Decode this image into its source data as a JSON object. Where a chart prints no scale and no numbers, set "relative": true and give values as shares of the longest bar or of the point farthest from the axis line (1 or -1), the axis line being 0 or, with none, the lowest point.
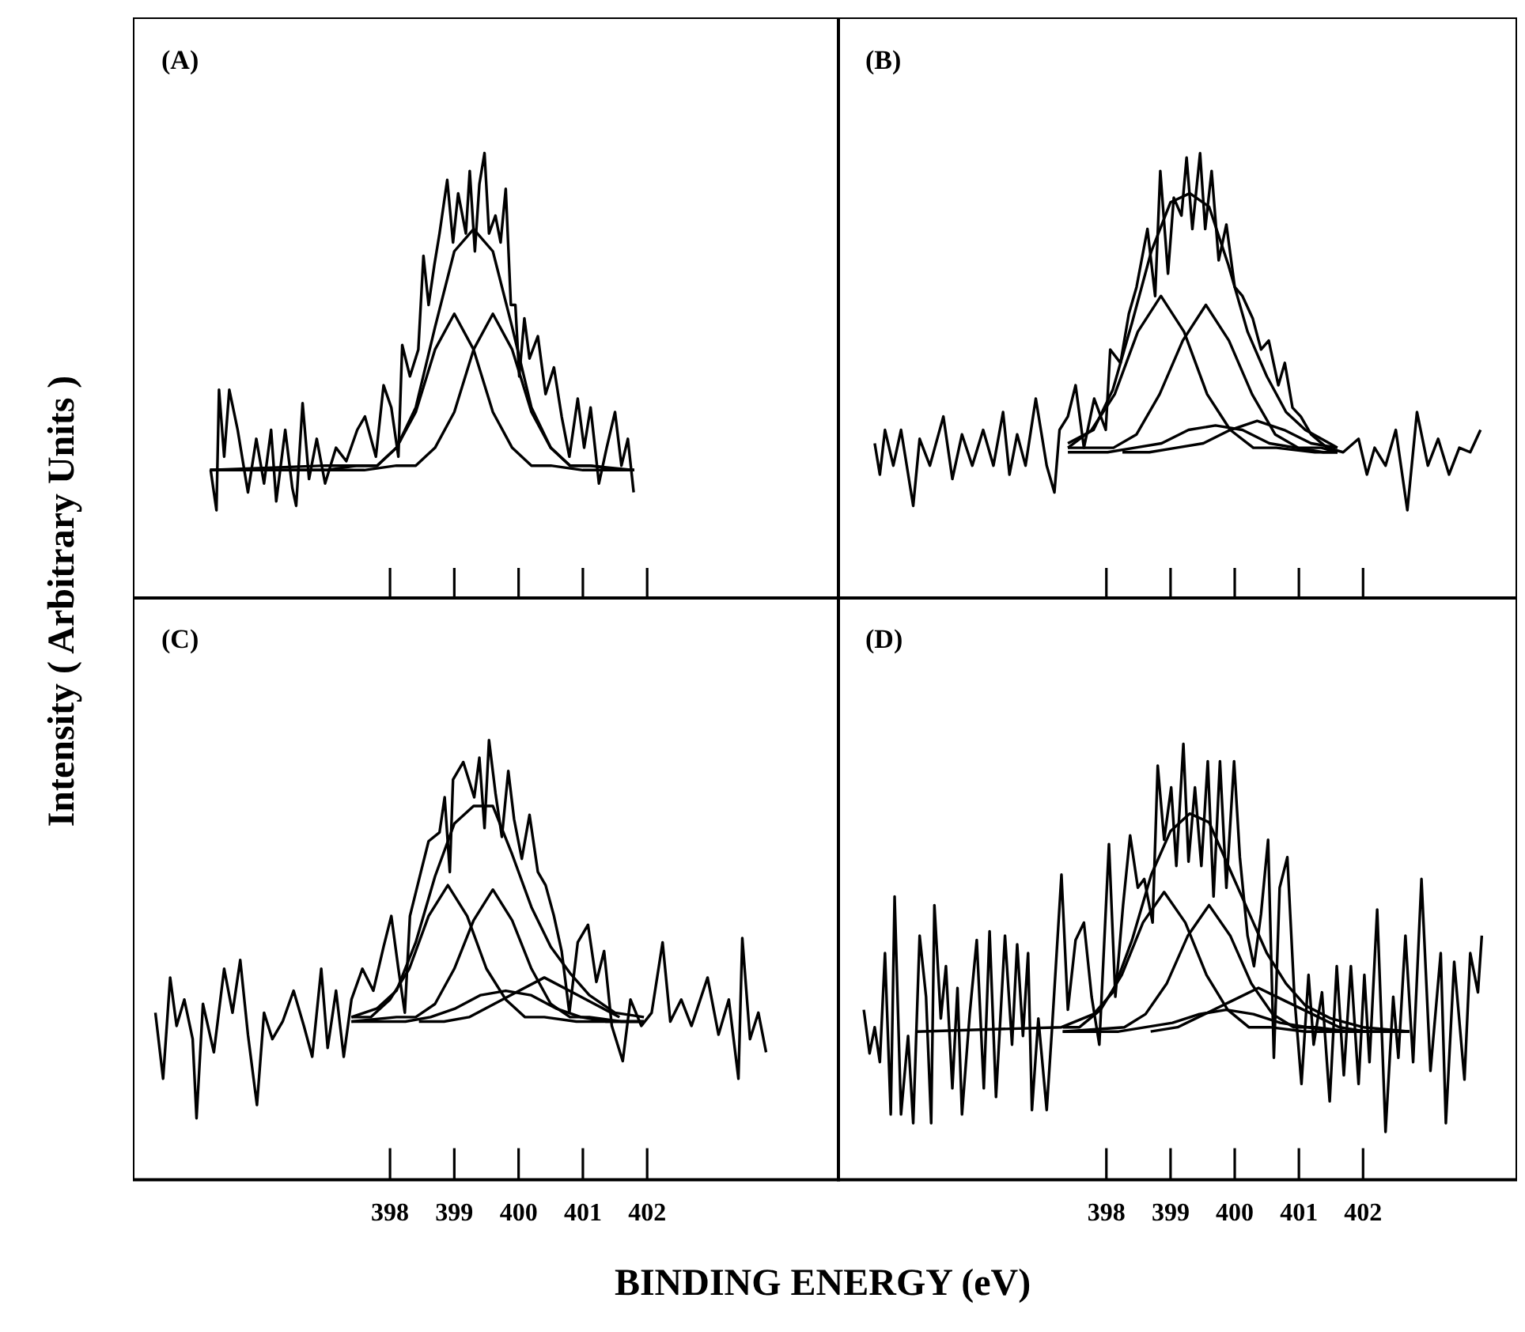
{
  "chart_data": [
    {
      "type": "line",
      "title": "(A)",
      "ylabel": "Intensity ( Arbitrary Units )",
      "relative": true,
      "xlim": [
        394,
        405
      ],
      "xticks": [
        398,
        399,
        400,
        401,
        402
      ],
      "tick_labels": false,
      "series": [
        {
          "color": "#000000",
          "x": [
            395.21,
            395.3,
            395.34,
            395.42,
            395.5,
            395.63,
            395.79,
            395.92,
            396.04,
            396.15,
            396.23,
            396.37,
            396.48,
            396.54,
            396.64,
            396.74,
            396.86,
            396.99,
            397.16,
            397.32,
            397.49,
            397.61,
            397.78,
            397.9,
            398.02,
            398.13,
            398.19,
            398.31,
            398.44,
            398.52,
            398.6,
            398.69,
            398.77,
            398.89,
            398.98,
            399.06,
            399.18,
            399.24,
            399.32,
            399.39,
            399.47,
            399.54,
            399.64,
            399.72,
            399.8,
            399.88,
            399.95,
            400.01,
            400.09,
            400.17,
            400.3,
            400.42,
            400.55,
            400.67,
            400.79,
            400.92,
            401.02,
            401.12,
            401.25,
            401.37,
            401.5,
            401.6,
            401.7,
            401.79
          ],
          "values": [
            0.29,
            0.2,
            0.47,
            0.32,
            0.47,
            0.38,
            0.24,
            0.36,
            0.26,
            0.38,
            0.22,
            0.38,
            0.25,
            0.21,
            0.44,
            0.27,
            0.36,
            0.26,
            0.34,
            0.31,
            0.38,
            0.41,
            0.32,
            0.48,
            0.43,
            0.32,
            0.57,
            0.5,
            0.56,
            0.77,
            0.66,
            0.75,
            0.82,
            0.94,
            0.8,
            0.91,
            0.82,
            0.96,
            0.78,
            0.93,
            1.0,
            0.82,
            0.86,
            0.8,
            0.92,
            0.66,
            0.66,
            0.5,
            0.63,
            0.54,
            0.59,
            0.46,
            0.52,
            0.41,
            0.32,
            0.45,
            0.34,
            0.43,
            0.26,
            0.34,
            0.42,
            0.3,
            0.36,
            0.24
          ]
        },
        {
          "color": "#000000",
          "x": [
            395.2,
            397.0,
            397.5,
            397.8,
            398.1,
            398.4,
            398.7,
            399.0,
            399.3,
            399.6,
            399.9,
            400.2,
            400.5,
            400.8,
            401.1,
            401.8
          ],
          "values": [
            0.29,
            0.3,
            0.3,
            0.3,
            0.34,
            0.43,
            0.61,
            0.78,
            0.83,
            0.78,
            0.61,
            0.43,
            0.34,
            0.3,
            0.3,
            0.29
          ]
        },
        {
          "color": "#000000",
          "x": [
            395.2,
            397.0,
            397.5,
            397.8,
            398.1,
            398.4,
            398.7,
            399.0,
            399.3,
            399.6,
            399.9,
            400.2,
            400.5,
            401.0,
            401.8
          ],
          "values": [
            0.29,
            0.29,
            0.3,
            0.3,
            0.34,
            0.42,
            0.56,
            0.64,
            0.56,
            0.42,
            0.34,
            0.3,
            0.3,
            0.29,
            0.29
          ]
        },
        {
          "color": "#000000",
          "x": [
            395.2,
            397.6,
            398.1,
            398.4,
            398.7,
            399.0,
            399.3,
            399.6,
            399.9,
            400.2,
            400.5,
            400.8,
            401.1,
            401.6,
            401.8
          ],
          "values": [
            0.29,
            0.29,
            0.3,
            0.3,
            0.34,
            0.42,
            0.56,
            0.64,
            0.56,
            0.42,
            0.34,
            0.3,
            0.3,
            0.29,
            0.29
          ]
        }
      ]
    },
    {
      "type": "line",
      "title": "(B)",
      "relative": true,
      "xlim": [
        393.8,
        404.4
      ],
      "xticks": [
        398,
        399,
        400,
        401,
        402
      ],
      "tick_labels": false,
      "series": [
        {
          "color": "#000000",
          "x": [
            394.39,
            394.47,
            394.55,
            394.68,
            394.8,
            394.99,
            395.09,
            395.25,
            395.46,
            395.6,
            395.75,
            395.91,
            396.08,
            396.24,
            396.39,
            396.49,
            396.61,
            396.74,
            396.9,
            397.07,
            397.19,
            397.27,
            397.4,
            397.52,
            397.65,
            397.81,
            397.99,
            398.06,
            398.22,
            398.35,
            398.47,
            398.64,
            398.76,
            398.84,
            398.96,
            399.05,
            399.17,
            399.25,
            399.34,
            399.46,
            399.54,
            399.64,
            399.75,
            399.87,
            400.0,
            400.12,
            400.28,
            400.41,
            400.53,
            400.68,
            400.78,
            400.9,
            401.03,
            401.19,
            401.44,
            401.69,
            401.93,
            402.06,
            402.18,
            402.35,
            402.51,
            402.69,
            402.84,
            403.01,
            403.17,
            403.34,
            403.5,
            403.67,
            403.83
          ],
          "values": [
            0.35,
            0.28,
            0.38,
            0.3,
            0.38,
            0.21,
            0.36,
            0.3,
            0.41,
            0.27,
            0.37,
            0.3,
            0.38,
            0.3,
            0.42,
            0.28,
            0.37,
            0.3,
            0.45,
            0.3,
            0.24,
            0.38,
            0.41,
            0.48,
            0.34,
            0.45,
            0.38,
            0.56,
            0.53,
            0.64,
            0.7,
            0.83,
            0.68,
            0.96,
            0.73,
            0.9,
            0.86,
            0.99,
            0.83,
            1.0,
            0.83,
            0.96,
            0.76,
            0.84,
            0.7,
            0.68,
            0.63,
            0.56,
            0.58,
            0.48,
            0.53,
            0.43,
            0.41,
            0.37,
            0.34,
            0.33,
            0.36,
            0.28,
            0.34,
            0.3,
            0.38,
            0.2,
            0.42,
            0.3,
            0.36,
            0.28,
            0.34,
            0.33,
            0.38
          ]
        },
        {
          "color": "#000000",
          "x": [
            397.4,
            397.8,
            398.1,
            398.4,
            398.7,
            399.0,
            399.3,
            399.6,
            399.9,
            400.2,
            400.5,
            400.8,
            401.1,
            401.6
          ],
          "values": [
            0.35,
            0.38,
            0.47,
            0.62,
            0.78,
            0.89,
            0.91,
            0.88,
            0.75,
            0.6,
            0.5,
            0.42,
            0.38,
            0.34
          ]
        },
        {
          "color": "#000000",
          "x": [
            397.4,
            397.77,
            398.13,
            398.49,
            398.85,
            399.21,
            399.57,
            399.93,
            400.29,
            400.65,
            401.25,
            401.6
          ],
          "values": [
            0.34,
            0.38,
            0.46,
            0.6,
            0.68,
            0.6,
            0.46,
            0.38,
            0.34,
            0.34,
            0.33,
            0.33
          ]
        },
        {
          "color": "#000000",
          "x": [
            397.4,
            397.75,
            398.11,
            398.47,
            398.83,
            399.19,
            399.55,
            399.91,
            400.27,
            400.63,
            400.99,
            401.35,
            401.6
          ],
          "values": [
            0.34,
            0.34,
            0.34,
            0.37,
            0.46,
            0.58,
            0.66,
            0.58,
            0.46,
            0.37,
            0.34,
            0.34,
            0.33
          ]
        },
        {
          "color": "#000000",
          "x": [
            397.4,
            397.6,
            398.02,
            398.44,
            398.86,
            399.28,
            399.7,
            400.12,
            400.54,
            400.96,
            401.38,
            401.6
          ],
          "values": [
            0.33,
            0.33,
            0.33,
            0.34,
            0.35,
            0.38,
            0.39,
            0.38,
            0.35,
            0.34,
            0.33,
            0.33
          ]
        },
        {
          "color": "#000000",
          "x": [
            398.25,
            398.67,
            399.09,
            399.51,
            399.93,
            400.35,
            400.77,
            401.19,
            401.6
          ],
          "values": [
            0.33,
            0.33,
            0.34,
            0.35,
            0.38,
            0.4,
            0.38,
            0.35,
            0.34
          ]
        }
      ]
    },
    {
      "type": "line",
      "title": "(C)",
      "xlabel": "BINDING ENERGY (eV)",
      "relative": true,
      "xlim": [
        394,
        405
      ],
      "xticks": [
        398,
        399,
        400,
        401,
        402
      ],
      "tick_labels": "x",
      "series": [
        {
          "color": "#000000",
          "x": [
            394.35,
            394.47,
            394.58,
            394.68,
            394.8,
            394.93,
            394.99,
            395.09,
            395.26,
            395.42,
            395.55,
            395.67,
            395.79,
            395.93,
            396.04,
            396.17,
            396.33,
            396.5,
            396.66,
            396.79,
            396.93,
            397.03,
            397.16,
            397.28,
            397.4,
            397.57,
            397.74,
            397.9,
            398.02,
            398.13,
            398.23,
            398.31,
            398.48,
            398.6,
            398.77,
            398.85,
            398.93,
            398.98,
            399.14,
            399.31,
            399.39,
            399.47,
            399.54,
            399.64,
            399.74,
            399.84,
            399.93,
            400.05,
            400.17,
            400.3,
            400.42,
            400.55,
            400.67,
            400.79,
            400.92,
            401.08,
            401.21,
            401.33,
            401.45,
            401.62,
            401.74,
            401.91,
            402.07,
            402.24,
            402.36,
            402.53,
            402.69,
            402.94,
            403.11,
            403.27,
            403.42,
            403.48,
            403.6,
            403.73,
            403.85
          ],
          "values": [
            0.38,
            0.23,
            0.46,
            0.35,
            0.41,
            0.32,
            0.14,
            0.4,
            0.29,
            0.48,
            0.38,
            0.5,
            0.33,
            0.17,
            0.38,
            0.32,
            0.36,
            0.43,
            0.35,
            0.28,
            0.48,
            0.3,
            0.43,
            0.28,
            0.41,
            0.48,
            0.43,
            0.53,
            0.6,
            0.48,
            0.38,
            0.6,
            0.7,
            0.77,
            0.79,
            0.87,
            0.7,
            0.91,
            0.95,
            0.87,
            0.96,
            0.8,
            1.0,
            0.88,
            0.78,
            0.93,
            0.82,
            0.73,
            0.83,
            0.7,
            0.67,
            0.6,
            0.52,
            0.38,
            0.54,
            0.58,
            0.45,
            0.52,
            0.35,
            0.27,
            0.41,
            0.35,
            0.38,
            0.54,
            0.36,
            0.41,
            0.35,
            0.46,
            0.33,
            0.41,
            0.23,
            0.55,
            0.32,
            0.38,
            0.29
          ]
        },
        {
          "color": "#000000",
          "x": [
            397.4,
            397.8,
            398.1,
            398.4,
            398.7,
            399.0,
            399.3,
            399.6,
            399.9,
            400.2,
            400.5,
            400.8,
            401.1,
            401.5,
            401.95
          ],
          "values": [
            0.37,
            0.39,
            0.43,
            0.54,
            0.69,
            0.81,
            0.85,
            0.85,
            0.74,
            0.62,
            0.53,
            0.47,
            0.42,
            0.38,
            0.37
          ]
        },
        {
          "color": "#000000",
          "x": [
            397.4,
            397.7,
            398.0,
            398.3,
            398.6,
            398.9,
            399.2,
            399.5,
            399.8,
            400.1,
            400.4,
            400.9,
            401.95
          ],
          "values": [
            0.37,
            0.37,
            0.41,
            0.48,
            0.6,
            0.67,
            0.6,
            0.48,
            0.41,
            0.37,
            0.37,
            0.36,
            0.36
          ]
        },
        {
          "color": "#000000",
          "x": [
            397.4,
            398.1,
            398.4,
            398.7,
            399.0,
            399.3,
            399.6,
            399.9,
            400.2,
            400.5,
            400.8,
            401.1,
            401.6,
            401.95
          ],
          "values": [
            0.36,
            0.37,
            0.37,
            0.4,
            0.48,
            0.59,
            0.66,
            0.59,
            0.48,
            0.4,
            0.37,
            0.37,
            0.36,
            0.36
          ]
        },
        {
          "color": "#000000",
          "x": [
            397.4,
            397.85,
            398.24,
            398.63,
            399.02,
            399.41,
            399.8,
            400.19,
            400.58,
            400.97,
            401.36,
            401.95
          ],
          "values": [
            0.36,
            0.36,
            0.36,
            0.37,
            0.39,
            0.42,
            0.43,
            0.42,
            0.39,
            0.37,
            0.36,
            0.36
          ]
        },
        {
          "color": "#000000",
          "x": [
            398.45,
            398.84,
            399.23,
            399.62,
            400.01,
            400.4,
            400.79,
            401.18,
            401.57
          ],
          "values": [
            0.36,
            0.36,
            0.37,
            0.4,
            0.43,
            0.46,
            0.43,
            0.4,
            0.37
          ]
        }
      ]
    },
    {
      "type": "line",
      "title": "(D)",
      "relative": true,
      "xlim": [
        393.8,
        404.4
      ],
      "xticks": [
        398,
        399,
        400,
        401,
        402
      ],
      "tick_labels": "x",
      "series": [
        {
          "color": "#000000",
          "x": [
            394.22,
            394.31,
            394.39,
            394.47,
            394.55,
            394.64,
            394.7,
            394.8,
            394.91,
            394.99,
            395.09,
            395.19,
            395.27,
            395.32,
            395.42,
            395.5,
            395.6,
            395.68,
            395.75,
            395.87,
            395.98,
            396.09,
            396.18,
            396.28,
            396.42,
            396.53,
            396.61,
            396.7,
            396.78,
            396.84,
            396.94,
            397.07,
            397.15,
            397.3,
            397.4,
            397.52,
            397.65,
            397.77,
            397.89,
            398.04,
            398.14,
            398.26,
            398.37,
            398.49,
            398.59,
            398.72,
            398.8,
            398.9,
            399.01,
            399.09,
            399.2,
            399.28,
            399.38,
            399.48,
            399.58,
            399.67,
            399.77,
            399.87,
            399.99,
            400.08,
            400.2,
            400.3,
            400.41,
            400.52,
            400.61,
            400.7,
            400.82,
            400.93,
            401.04,
            401.15,
            401.23,
            401.36,
            401.48,
            401.59,
            401.7,
            401.81,
            401.93,
            402.02,
            402.1,
            402.22,
            402.35,
            402.47,
            402.55,
            402.66,
            402.78,
            402.91,
            403.05,
            403.21,
            403.29,
            403.42,
            403.58,
            403.67,
            403.79,
            403.85
          ],
          "values": [
            0.39,
            0.29,
            0.35,
            0.27,
            0.52,
            0.15,
            0.65,
            0.15,
            0.33,
            0.13,
            0.56,
            0.42,
            0.13,
            0.63,
            0.37,
            0.49,
            0.21,
            0.44,
            0.15,
            0.38,
            0.55,
            0.21,
            0.57,
            0.19,
            0.56,
            0.31,
            0.54,
            0.33,
            0.52,
            0.16,
            0.37,
            0.16,
            0.34,
            0.7,
            0.39,
            0.55,
            0.59,
            0.42,
            0.31,
            0.77,
            0.42,
            0.63,
            0.79,
            0.67,
            0.69,
            0.59,
            0.95,
            0.78,
            0.9,
            0.72,
            1.0,
            0.73,
            0.9,
            0.72,
            0.96,
            0.65,
            0.96,
            0.67,
            0.96,
            0.74,
            0.56,
            0.49,
            0.61,
            0.78,
            0.28,
            0.67,
            0.74,
            0.42,
            0.22,
            0.47,
            0.31,
            0.43,
            0.18,
            0.49,
            0.24,
            0.49,
            0.22,
            0.47,
            0.27,
            0.62,
            0.11,
            0.42,
            0.28,
            0.56,
            0.27,
            0.69,
            0.25,
            0.52,
            0.13,
            0.5,
            0.23,
            0.52,
            0.43,
            0.56
          ]
        },
        {
          "color": "#000000",
          "x": [
            395.05,
            397.3,
            397.8,
            398.1,
            398.4,
            398.7,
            399.0,
            399.3,
            399.6,
            399.9,
            400.2,
            400.5,
            400.8,
            401.1,
            401.5,
            402.0,
            402.72
          ],
          "values": [
            0.34,
            0.35,
            0.38,
            0.43,
            0.55,
            0.7,
            0.8,
            0.84,
            0.82,
            0.72,
            0.62,
            0.52,
            0.45,
            0.4,
            0.37,
            0.35,
            0.34
          ]
        },
        {
          "color": "#000000",
          "x": [
            397.32,
            397.58,
            397.91,
            398.24,
            398.57,
            398.9,
            399.23,
            399.56,
            399.89,
            400.22,
            400.55,
            401.1,
            402.72
          ],
          "values": [
            0.35,
            0.35,
            0.39,
            0.47,
            0.59,
            0.66,
            0.59,
            0.47,
            0.39,
            0.35,
            0.35,
            0.34,
            0.34
          ]
        },
        {
          "color": "#000000",
          "x": [
            397.32,
            398.28,
            398.61,
            398.94,
            399.27,
            399.6,
            399.93,
            400.26,
            400.59,
            400.92,
            401.25,
            401.8,
            402.72
          ],
          "values": [
            0.34,
            0.35,
            0.38,
            0.45,
            0.56,
            0.63,
            0.56,
            0.45,
            0.38,
            0.35,
            0.35,
            0.34,
            0.34
          ]
        },
        {
          "color": "#000000",
          "x": [
            397.32,
            398.19,
            398.61,
            399.03,
            399.45,
            399.87,
            400.29,
            400.71,
            401.13,
            401.55,
            402.72
          ],
          "values": [
            0.34,
            0.34,
            0.35,
            0.36,
            0.38,
            0.39,
            0.38,
            0.36,
            0.35,
            0.34,
            0.34
          ]
        },
        {
          "color": "#000000",
          "x": [
            398.69,
            399.11,
            399.53,
            399.95,
            400.37,
            400.79,
            401.21,
            401.63,
            402.05
          ],
          "values": [
            0.34,
            0.35,
            0.38,
            0.41,
            0.44,
            0.41,
            0.38,
            0.35,
            0.34
          ]
        }
      ]
    }
  ]
}
